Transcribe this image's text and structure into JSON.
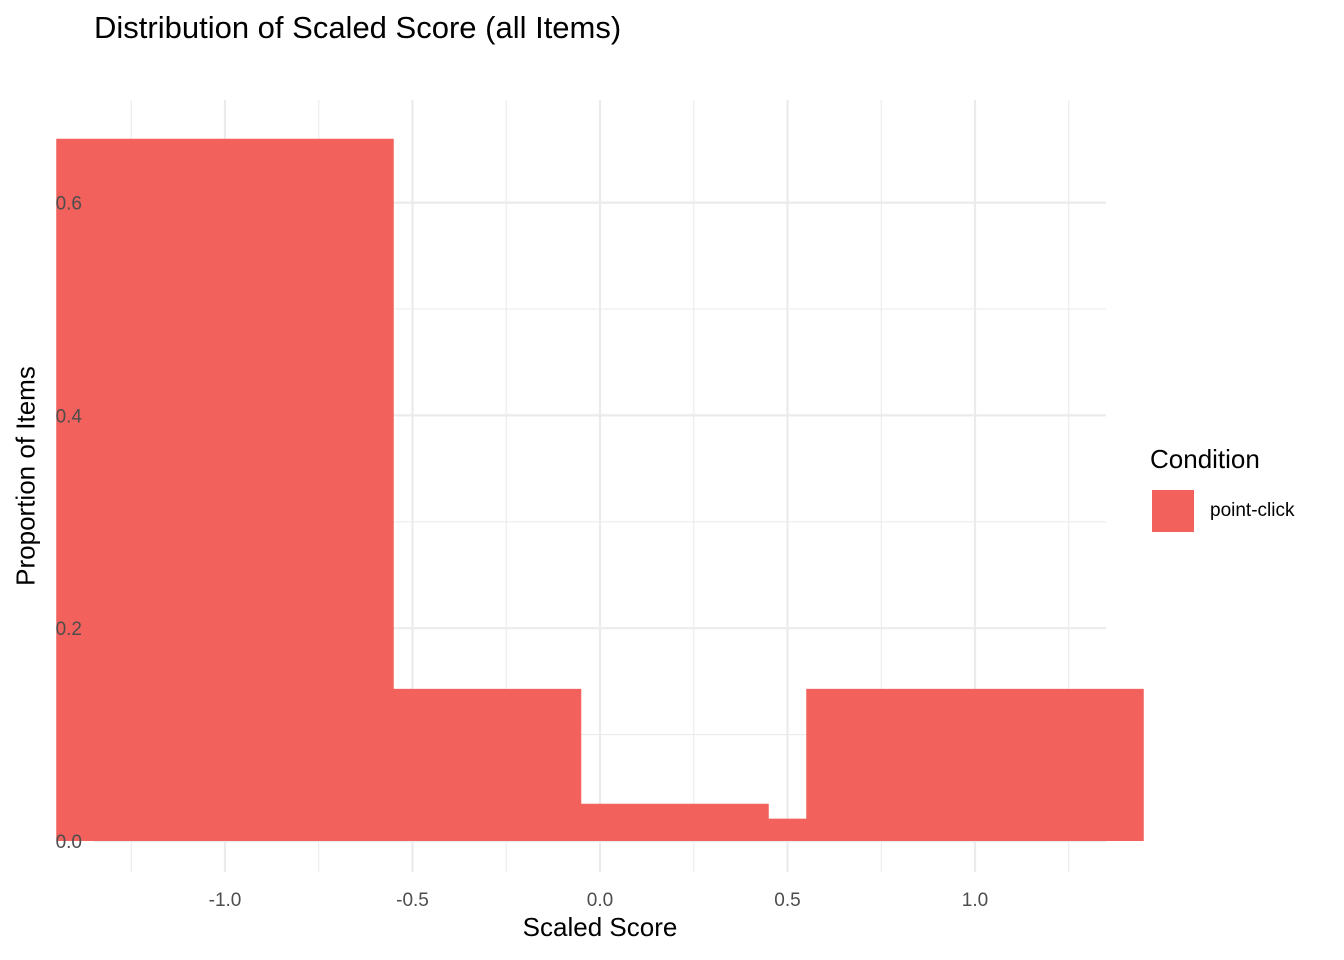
{
  "chart_data": {
    "type": "bar",
    "title": "Distribution of Scaled Score (all Items)",
    "xlabel": "Scaled Score",
    "ylabel": "Proportion of Items",
    "categories": [
      -1.0,
      -0.5,
      0.0,
      0.5,
      1.0
    ],
    "series": [
      {
        "name": "point-click",
        "values": [
          0.66,
          0.143,
          0.035,
          0.021,
          0.143
        ]
      }
    ],
    "x_ticks": [
      "-1.0",
      "-0.5",
      "0.0",
      "0.5",
      "1.0"
    ],
    "y_ticks": [
      "0.0",
      "0.2",
      "0.4",
      "0.6"
    ],
    "ylim": [
      0,
      0.69
    ],
    "xlim": [
      -1.25,
      1.25
    ],
    "grid": true,
    "legend": {
      "title": "Condition",
      "placement": "right"
    },
    "colors": {
      "bar": "#F2615C",
      "grid": "#EBEBEB",
      "text": "#4D4D4D"
    }
  }
}
